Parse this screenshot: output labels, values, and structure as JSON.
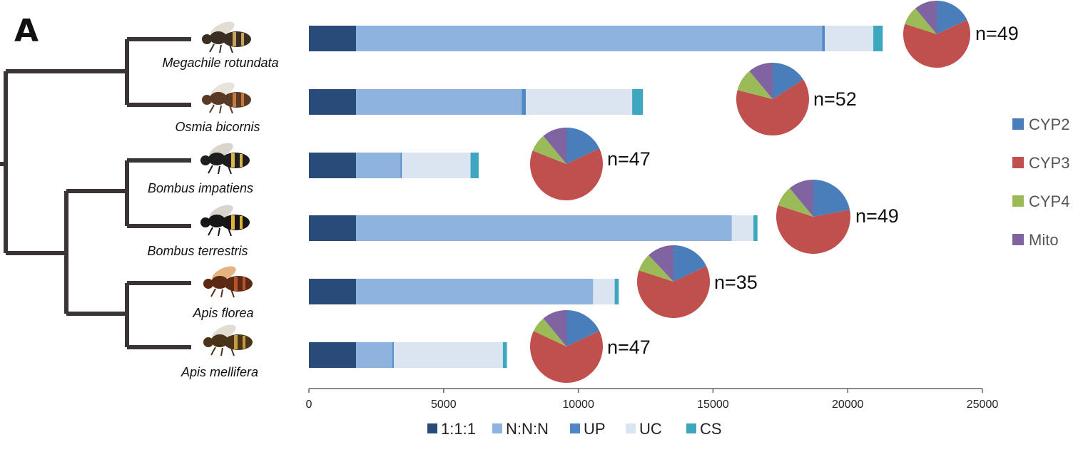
{
  "panel_label": "A",
  "species": [
    {
      "name": "Megachile rotundata"
    },
    {
      "name": "Osmia bicornis"
    },
    {
      "name": "Bombus impatiens"
    },
    {
      "name": "Bombus terrestris"
    },
    {
      "name": "Apis florea"
    },
    {
      "name": "Apis mellifera"
    }
  ],
  "chart_data": {
    "type": "bar",
    "orientation": "horizontal",
    "stacked": true,
    "categories": [
      "Megachile rotundata",
      "Osmia bicornis",
      "Bombus impatiens",
      "Bombus terrestris",
      "Apis florea",
      "Apis mellifera"
    ],
    "series": [
      {
        "name": "1:1:1",
        "color": "#284b7a",
        "values": [
          1750,
          1750,
          1750,
          1750,
          1750,
          1750
        ]
      },
      {
        "name": "N:N:N",
        "color": "#8db3df",
        "values": [
          17300,
          6150,
          1650,
          13950,
          8800,
          1350
        ]
      },
      {
        "name": "UP",
        "color": "#4f86c4",
        "values": [
          100,
          150,
          50,
          0,
          0,
          50
        ]
      },
      {
        "name": "UC",
        "color": "#dbe5f2",
        "values": [
          1800,
          3950,
          2550,
          800,
          800,
          4050
        ]
      },
      {
        "name": "CS",
        "color": "#3fa6bf",
        "values": [
          350,
          400,
          300,
          150,
          150,
          150
        ]
      }
    ],
    "xlim": [
      0,
      25000
    ],
    "xticks": [
      "0",
      "5000",
      "10000",
      "15000",
      "20000",
      "25000"
    ],
    "legend_position": "bottom",
    "pies": {
      "categories": [
        "CYP2",
        "CYP3",
        "CYP4",
        "Mito"
      ],
      "colors": [
        "#4a7ebb",
        "#c0504d",
        "#9bbb59",
        "#8064a2"
      ],
      "items": [
        {
          "species": "Megachile rotundata",
          "n_label": "n=49",
          "values": [
            18,
            62,
            9,
            11
          ]
        },
        {
          "species": "Osmia bicornis",
          "n_label": "n=52",
          "values": [
            16,
            63,
            10,
            11
          ]
        },
        {
          "species": "Bombus impatiens",
          "n_label": "n=47",
          "values": [
            18,
            63,
            8,
            11
          ]
        },
        {
          "species": "Bombus terrestris",
          "n_label": "n=49",
          "values": [
            22,
            58,
            9,
            11
          ]
        },
        {
          "species": "Apis florea",
          "n_label": "n=35",
          "values": [
            18,
            62,
            8,
            12
          ]
        },
        {
          "species": "Apis mellifera",
          "n_label": "n=47",
          "values": [
            18,
            64,
            7,
            11
          ]
        }
      ]
    }
  }
}
